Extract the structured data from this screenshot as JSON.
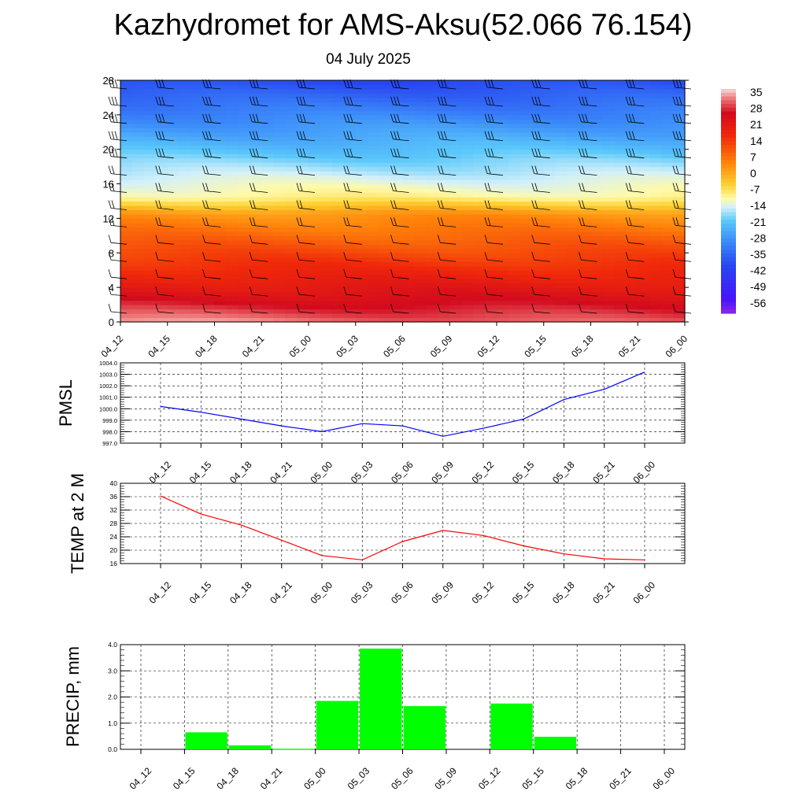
{
  "title": "Kazhydromet for AMS-Aksu(52.066 76.154)",
  "subtitle": "04 July 2025",
  "colors": {
    "pmsl_line": "#0000ff",
    "temp_line": "#ff0000",
    "precip_bar": "#00ff00",
    "barb": "#000000",
    "grid": "#000000"
  },
  "chart_data": [
    {
      "type": "heatmap",
      "name": "temperature-wind-cross-section",
      "x": [
        "04_12",
        "04_15",
        "04_18",
        "04_21",
        "05_00",
        "05_03",
        "05_06",
        "05_09",
        "05_12",
        "05_15",
        "05_18",
        "05_21",
        "06_00"
      ],
      "ylabel": "",
      "yticks": [
        0,
        4,
        8,
        12,
        16,
        20,
        24,
        28
      ],
      "ylim": [
        0,
        28
      ],
      "colorbar": {
        "labels": [
          "35",
          "28",
          "21",
          "14",
          "7",
          "0",
          "-7",
          "-14",
          "-21",
          "-28",
          "-35",
          "-42",
          "-49",
          "-56"
        ],
        "min": -60,
        "max": 38
      },
      "wind_barbs": true
    },
    {
      "type": "line",
      "name": "pmsl",
      "ylabel": "PMSL",
      "x": [
        "04_12",
        "04_15",
        "04_18",
        "04_21",
        "05_00",
        "05_03",
        "05_06",
        "05_09",
        "05_12",
        "05_15",
        "05_18",
        "05_21",
        "06_00"
      ],
      "values": [
        1000.2,
        999.7,
        999.1,
        998.5,
        998.0,
        998.7,
        998.5,
        997.6,
        998.3,
        999.1,
        1000.8,
        1001.7,
        1003.2
      ],
      "ylim": [
        997.0,
        1004.0
      ],
      "ytick_labels": [
        "997.0",
        "998.0",
        "999.0",
        "1000.0",
        "1001.0",
        "1002.0",
        "1003.0",
        "1004.0"
      ],
      "grid": true
    },
    {
      "type": "line",
      "name": "temp-2m",
      "ylabel": "TEMP at 2 M",
      "x": [
        "04_12",
        "04_15",
        "04_18",
        "04_21",
        "05_00",
        "05_03",
        "05_06",
        "05_09",
        "05_12",
        "05_15",
        "05_18",
        "05_21",
        "06_00"
      ],
      "values": [
        36.2,
        30.8,
        27.5,
        23.0,
        18.4,
        17.1,
        22.6,
        25.9,
        24.4,
        21.3,
        18.9,
        17.4,
        17.1
      ],
      "ylim": [
        16,
        40
      ],
      "ytick_labels": [
        "16",
        "20",
        "24",
        "28",
        "32",
        "36",
        "40"
      ],
      "grid": true
    },
    {
      "type": "bar",
      "name": "precip",
      "ylabel": "PRECIP, mm",
      "categories": [
        "04_12",
        "04_15",
        "04_18",
        "04_21",
        "05_00",
        "05_03",
        "05_06",
        "05_09",
        "05_12",
        "05_15",
        "05_18",
        "05_21",
        "06_00"
      ],
      "values": [
        0,
        0.65,
        0.15,
        0.02,
        1.85,
        3.85,
        1.65,
        0,
        1.75,
        0.48,
        0,
        0,
        0
      ],
      "ylim": [
        0,
        4.0
      ],
      "ytick_labels": [
        "0.0",
        "1.0",
        "2.0",
        "3.0",
        "4.0"
      ],
      "grid": true
    }
  ]
}
